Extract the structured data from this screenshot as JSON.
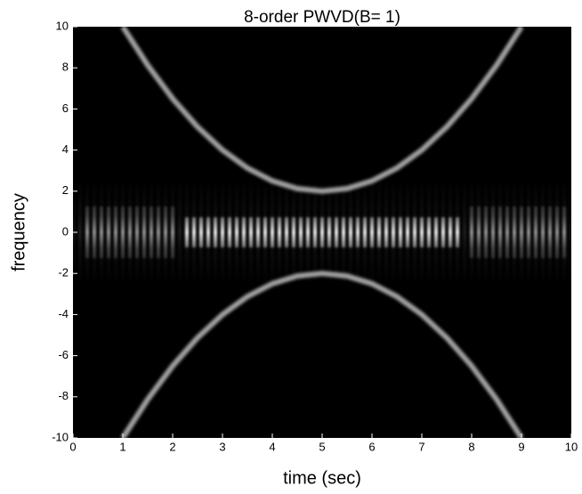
{
  "chart_data": {
    "type": "line",
    "title": "8-order PWVD(B= 1)",
    "xlabel": "time (sec)",
    "ylabel": "frequency",
    "xlim": [
      0,
      10
    ],
    "ylim": [
      -10,
      10
    ],
    "xticks": [
      0,
      1,
      2,
      3,
      4,
      5,
      6,
      7,
      8,
      9,
      10
    ],
    "yticks": [
      -10,
      -8,
      -6,
      -4,
      -2,
      0,
      2,
      4,
      6,
      8,
      10
    ],
    "background": "#000000",
    "x": [
      1,
      1.5,
      2,
      2.5,
      3,
      3.5,
      4,
      4.5,
      5,
      5.5,
      6,
      6.5,
      7,
      7.5,
      8,
      8.5,
      9
    ],
    "series": [
      {
        "name": "upper",
        "color": "#a0a0a0",
        "values": [
          10,
          8.125,
          6.5,
          5.125,
          4,
          3.125,
          2.5,
          2.125,
          2,
          2.125,
          2.5,
          3.125,
          4,
          5.125,
          6.5,
          8.125,
          10
        ]
      },
      {
        "name": "lower",
        "color": "#a0a0a0",
        "values": [
          -10,
          -8.125,
          -6.5,
          -5.125,
          -4,
          -3.125,
          -2.5,
          -2.125,
          -2,
          -2.125,
          -2.5,
          -3.125,
          -4,
          -5.125,
          -6.5,
          -8.125,
          -10
        ]
      }
    ]
  }
}
